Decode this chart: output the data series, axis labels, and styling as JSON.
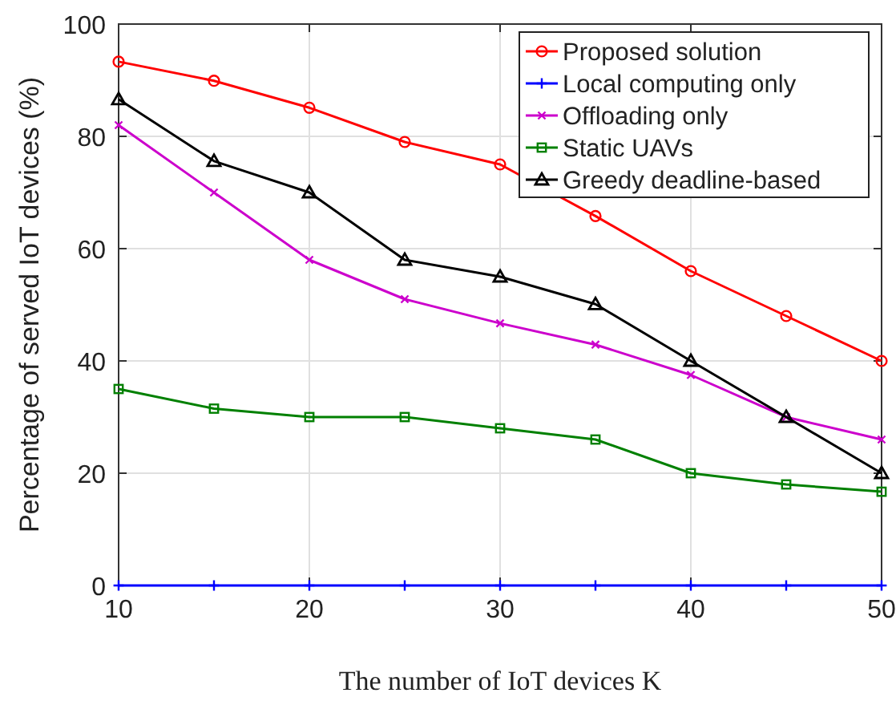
{
  "chart_data": {
    "type": "line",
    "xlabel": "The number of IoT devices K",
    "ylabel": "Percentage of served IoT devices (%)",
    "x": [
      10,
      15,
      20,
      25,
      30,
      35,
      40,
      45,
      50
    ],
    "xlim": [
      10,
      50
    ],
    "xticks": [
      10,
      20,
      30,
      40,
      50
    ],
    "ylim": [
      0,
      100
    ],
    "yticks": [
      0,
      20,
      40,
      60,
      80,
      100
    ],
    "grid": true,
    "legend": "top right",
    "series": [
      {
        "name": "Proposed solution",
        "color": "#ff0000",
        "marker": "circle",
        "values": [
          93.3,
          89.9,
          85.1,
          79,
          75,
          65.8,
          56,
          48,
          40
        ]
      },
      {
        "name": "Local computing only",
        "color": "#0000ff",
        "marker": "cross",
        "values": [
          0,
          0,
          0,
          0,
          0,
          0,
          0,
          0,
          0
        ]
      },
      {
        "name": "Offloading only",
        "color": "#cc00cc",
        "marker": "cross",
        "values": [
          82,
          70,
          58,
          51,
          46.7,
          42.9,
          37.5,
          30,
          26
        ]
      },
      {
        "name": "Static UAVs",
        "color": "#008000",
        "marker": "square",
        "values": [
          35,
          31.5,
          30,
          30,
          28,
          26,
          20,
          18,
          16.7
        ]
      },
      {
        "name": "Greedy deadline-based",
        "color": "#000000",
        "marker": "triangle",
        "values": [
          86.6,
          75.6,
          70,
          58,
          55,
          50.1,
          40,
          30,
          20
        ]
      }
    ]
  }
}
